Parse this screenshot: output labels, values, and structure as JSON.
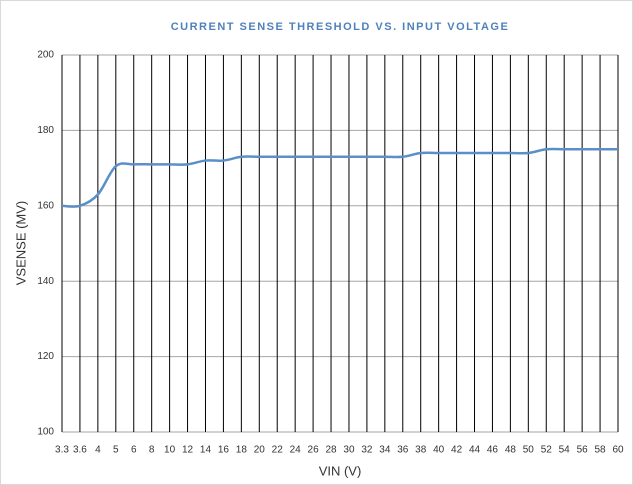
{
  "chart_data": {
    "type": "line",
    "title": "CURRENT SENSE THRESHOLD VS. INPUT VOLTAGE",
    "x_label": "VIN (V)",
    "y_label": "VSENSE (MV)",
    "categories": [
      "3.3",
      "3.6",
      "4",
      "5",
      "6",
      "8",
      "10",
      "12",
      "14",
      "16",
      "18",
      "20",
      "22",
      "24",
      "26",
      "28",
      "30",
      "32",
      "34",
      "36",
      "38",
      "40",
      "42",
      "44",
      "46",
      "48",
      "50",
      "52",
      "54",
      "56",
      "58",
      "60"
    ],
    "series": [
      {
        "name": "VSENSE",
        "color": "#5b8fc9",
        "values": [
          160,
          160,
          163,
          170.5,
          171,
          171,
          171,
          171,
          172,
          172,
          173,
          173,
          173,
          173,
          173,
          173,
          173,
          173,
          173,
          173,
          174,
          174,
          174,
          174,
          174,
          174,
          174,
          175,
          175,
          175,
          175,
          175
        ]
      }
    ],
    "ylim": [
      100,
      200
    ],
    "yticks": [
      100,
      120,
      140,
      160,
      180,
      200
    ],
    "grid": true
  }
}
